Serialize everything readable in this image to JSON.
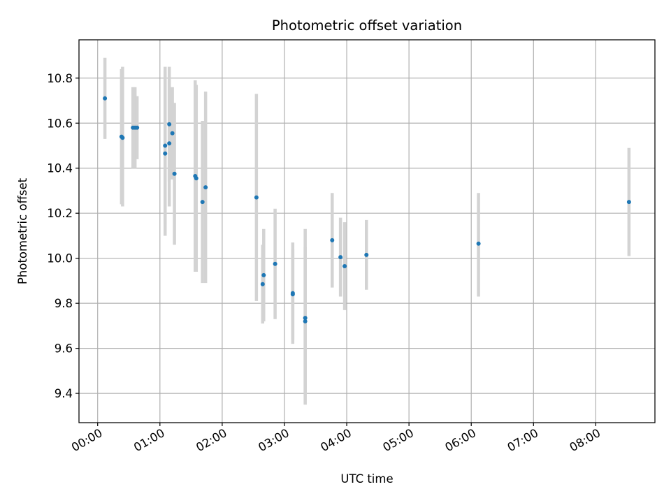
{
  "chart_data": {
    "type": "scatter",
    "title": "Photometric offset variation",
    "xlabel": "UTC time",
    "ylabel": "Photometric offset",
    "x_unit": "hours",
    "xlim": [
      "-0.3",
      "8.95"
    ],
    "ylim": [
      9.27,
      10.97
    ],
    "x_ticks": [
      {
        "value": 0,
        "label": "00:00"
      },
      {
        "value": 1,
        "label": "01:00"
      },
      {
        "value": 2,
        "label": "02:00"
      },
      {
        "value": 3,
        "label": "03:00"
      },
      {
        "value": 4,
        "label": "04:00"
      },
      {
        "value": 5,
        "label": "05:00"
      },
      {
        "value": 6,
        "label": "06:00"
      },
      {
        "value": 7,
        "label": "07:00"
      },
      {
        "value": 8,
        "label": "08:00"
      }
    ],
    "y_ticks": [
      {
        "value": 9.4,
        "label": "9.4"
      },
      {
        "value": 9.6,
        "label": "9.6"
      },
      {
        "value": 9.8,
        "label": "9.8"
      },
      {
        "value": 10.0,
        "label": "10.0"
      },
      {
        "value": 10.2,
        "label": "10.2"
      },
      {
        "value": 10.4,
        "label": "10.4"
      },
      {
        "value": 10.6,
        "label": "10.6"
      },
      {
        "value": 10.8,
        "label": "10.8"
      }
    ],
    "grid": true,
    "colors": {
      "point": "#1f77b4",
      "errorbar": "#d3d3d3",
      "grid": "#b0b0b0",
      "axes": "#000000"
    },
    "points": [
      {
        "x": "00:07",
        "y": 10.71,
        "err_low": 10.53,
        "err_high": 10.89
      },
      {
        "x": "00:23",
        "y": 10.54,
        "err_low": 10.24,
        "err_high": 10.84
      },
      {
        "x": "00:24",
        "y": 10.535,
        "err_low": 10.23,
        "err_high": 10.85
      },
      {
        "x": "00:34",
        "y": 10.58,
        "err_low": 10.4,
        "err_high": 10.76
      },
      {
        "x": "00:36",
        "y": 10.58,
        "err_low": 10.4,
        "err_high": 10.76
      },
      {
        "x": "00:38",
        "y": 10.58,
        "err_low": 10.44,
        "err_high": 10.72
      },
      {
        "x": "01:05",
        "y": 10.465,
        "err_low": 10.1,
        "err_high": 10.83
      },
      {
        "x": "01:05",
        "y": 10.5,
        "err_low": 10.15,
        "err_high": 10.85
      },
      {
        "x": "01:09",
        "y": 10.595,
        "err_low": 10.34,
        "err_high": 10.85
      },
      {
        "x": "01:09",
        "y": 10.51,
        "err_low": 10.23,
        "err_high": 10.79
      },
      {
        "x": "01:12",
        "y": 10.555,
        "err_low": 10.35,
        "err_high": 10.76
      },
      {
        "x": "01:14",
        "y": 10.375,
        "err_low": 10.06,
        "err_high": 10.69
      },
      {
        "x": "01:34",
        "y": 10.365,
        "err_low": 9.94,
        "err_high": 10.79
      },
      {
        "x": "01:35",
        "y": 10.355,
        "err_low": 9.94,
        "err_high": 10.77
      },
      {
        "x": "01:41",
        "y": 10.25,
        "err_low": 9.89,
        "err_high": 10.61
      },
      {
        "x": "01:44",
        "y": 10.315,
        "err_low": 9.89,
        "err_high": 10.74
      },
      {
        "x": "02:33",
        "y": 10.27,
        "err_low": 9.81,
        "err_high": 10.73
      },
      {
        "x": "02:39",
        "y": 9.885,
        "err_low": 9.71,
        "err_high": 10.06
      },
      {
        "x": "02:40",
        "y": 9.925,
        "err_low": 9.72,
        "err_high": 10.13
      },
      {
        "x": "02:51",
        "y": 9.975,
        "err_low": 9.73,
        "err_high": 10.22
      },
      {
        "x": "03:08",
        "y": 9.845,
        "err_low": 9.62,
        "err_high": 10.07
      },
      {
        "x": "03:08",
        "y": 9.84,
        "err_low": 9.64,
        "err_high": 10.04
      },
      {
        "x": "03:20",
        "y": 9.735,
        "err_low": 9.35,
        "err_high": 10.13
      },
      {
        "x": "03:20",
        "y": 9.72,
        "err_low": 9.4,
        "err_high": 10.05
      },
      {
        "x": "03:46",
        "y": 10.08,
        "err_low": 9.87,
        "err_high": 10.29
      },
      {
        "x": "03:54",
        "y": 10.005,
        "err_low": 9.83,
        "err_high": 10.18
      },
      {
        "x": "03:58",
        "y": 9.965,
        "err_low": 9.77,
        "err_high": 10.16
      },
      {
        "x": "04:19",
        "y": 10.015,
        "err_low": 9.86,
        "err_high": 10.17
      },
      {
        "x": "06:07",
        "y": 10.065,
        "err_low": 9.83,
        "err_high": 10.29
      },
      {
        "x": "08:32",
        "y": 10.25,
        "err_low": 10.01,
        "err_high": 10.49
      }
    ]
  }
}
